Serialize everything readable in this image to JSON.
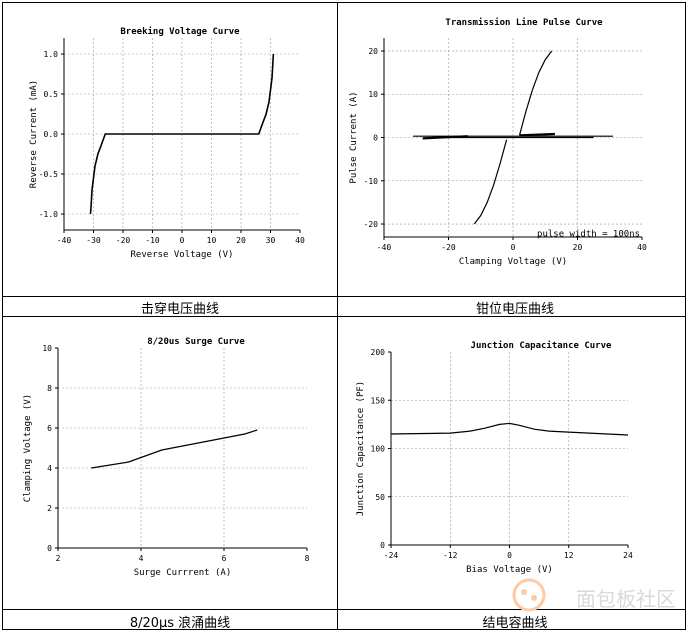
{
  "captions": [
    "击穿电压曲线",
    "钳位电压曲线",
    "8/20μs 浪涌曲线",
    "结电容曲线"
  ],
  "watermark": {
    "text": "面包板社区"
  },
  "chart_data": [
    {
      "type": "line",
      "title": "Breeking Voltage Curve",
      "xlabel": "Reverse Voltage (V)",
      "ylabel": "Reverse Current (mA)",
      "xlim": [
        -40,
        40
      ],
      "ylim": [
        -1.2,
        1.2
      ],
      "xticks": [
        -40,
        -30,
        -20,
        -10,
        0,
        10,
        20,
        30,
        40
      ],
      "yticks": [
        -1.0,
        -0.5,
        0.0,
        0.5,
        1.0
      ],
      "ytick_labels": [
        "-1.0",
        "-0.5",
        "0.0",
        "0.5",
        "1.0"
      ],
      "grid": true,
      "series": [
        {
          "x": [
            -31,
            -30.8,
            -30.5,
            -30,
            -29.5,
            -28.5,
            -27.5,
            -26.5,
            -26,
            -24,
            0,
            24,
            26,
            26.5,
            27.5,
            28.5,
            29.5,
            30,
            30.5,
            30.8,
            31
          ],
          "y": [
            -1.0,
            -0.9,
            -0.7,
            -0.55,
            -0.4,
            -0.25,
            -0.15,
            -0.05,
            0.0,
            0.0,
            0.0,
            0.0,
            0.0,
            0.05,
            0.15,
            0.25,
            0.4,
            0.55,
            0.7,
            0.9,
            1.0
          ]
        }
      ]
    },
    {
      "type": "line",
      "title": "Transmission Line Pulse Curve",
      "xlabel": "Clamping Voltage (V)",
      "ylabel": "Pulse Current (A)",
      "xlim": [
        -40,
        40
      ],
      "ylim": [
        -23,
        23
      ],
      "xticks": [
        -40,
        -20,
        0,
        20,
        40
      ],
      "yticks": [
        -20,
        -10,
        0,
        10,
        20
      ],
      "ytick_labels": [
        "-20",
        "-10",
        "0",
        "10",
        "20"
      ],
      "annotation": "pulse width = 100ns",
      "grid": true,
      "series": [
        {
          "x": [
            -31,
            31
          ],
          "y": [
            0.3,
            0.3
          ]
        },
        {
          "x": [
            -25,
            25
          ],
          "y": [
            0,
            0
          ]
        },
        {
          "x": [
            -28,
            -14
          ],
          "y": [
            -0.2,
            0.3
          ]
        },
        {
          "x": [
            2,
            13
          ],
          "y": [
            0.5,
            0.8
          ]
        },
        {
          "x": [
            2,
            4,
            6,
            8,
            10,
            12
          ],
          "y": [
            0.5,
            6,
            11,
            15,
            18,
            20
          ]
        },
        {
          "x": [
            -2,
            -4,
            -6,
            -8,
            -10,
            -12
          ],
          "y": [
            -0.5,
            -6,
            -11,
            -15,
            -18,
            -20
          ]
        }
      ]
    },
    {
      "type": "line",
      "title": "8/20us Surge Curve",
      "xlabel": "Surge Currrent (A)",
      "ylabel": "Clamping Voltage (V)",
      "xlim": [
        2,
        8
      ],
      "ylim": [
        0,
        10
      ],
      "xticks": [
        2,
        4,
        6,
        8
      ],
      "yticks": [
        0,
        2,
        4,
        6,
        8,
        10
      ],
      "ytick_labels": [
        "0",
        "2",
        "4",
        "6",
        "8",
        "10"
      ],
      "grid": true,
      "series": [
        {
          "x": [
            2.8,
            3.7,
            4.5,
            5.5,
            6.5,
            6.8
          ],
          "y": [
            4.0,
            4.3,
            4.9,
            5.3,
            5.7,
            5.9
          ]
        }
      ]
    },
    {
      "type": "line",
      "title": "Junction Capacitance Curve",
      "xlabel": "Bias Voltage (V)",
      "ylabel": "Junction Capacitance (PF)",
      "xlim": [
        -24,
        24
      ],
      "ylim": [
        0,
        200
      ],
      "xticks": [
        -24,
        -12,
        0,
        12,
        24
      ],
      "yticks": [
        0,
        50,
        100,
        150,
        200
      ],
      "ytick_labels": [
        "0",
        "50",
        "100",
        "150",
        "200"
      ],
      "grid": true,
      "series": [
        {
          "x": [
            -24,
            -12,
            -8,
            -5,
            -2,
            0,
            2,
            5,
            8,
            12,
            24
          ],
          "y": [
            115,
            116,
            118,
            121,
            125,
            126,
            124,
            120,
            118,
            117,
            114
          ]
        }
      ]
    }
  ]
}
